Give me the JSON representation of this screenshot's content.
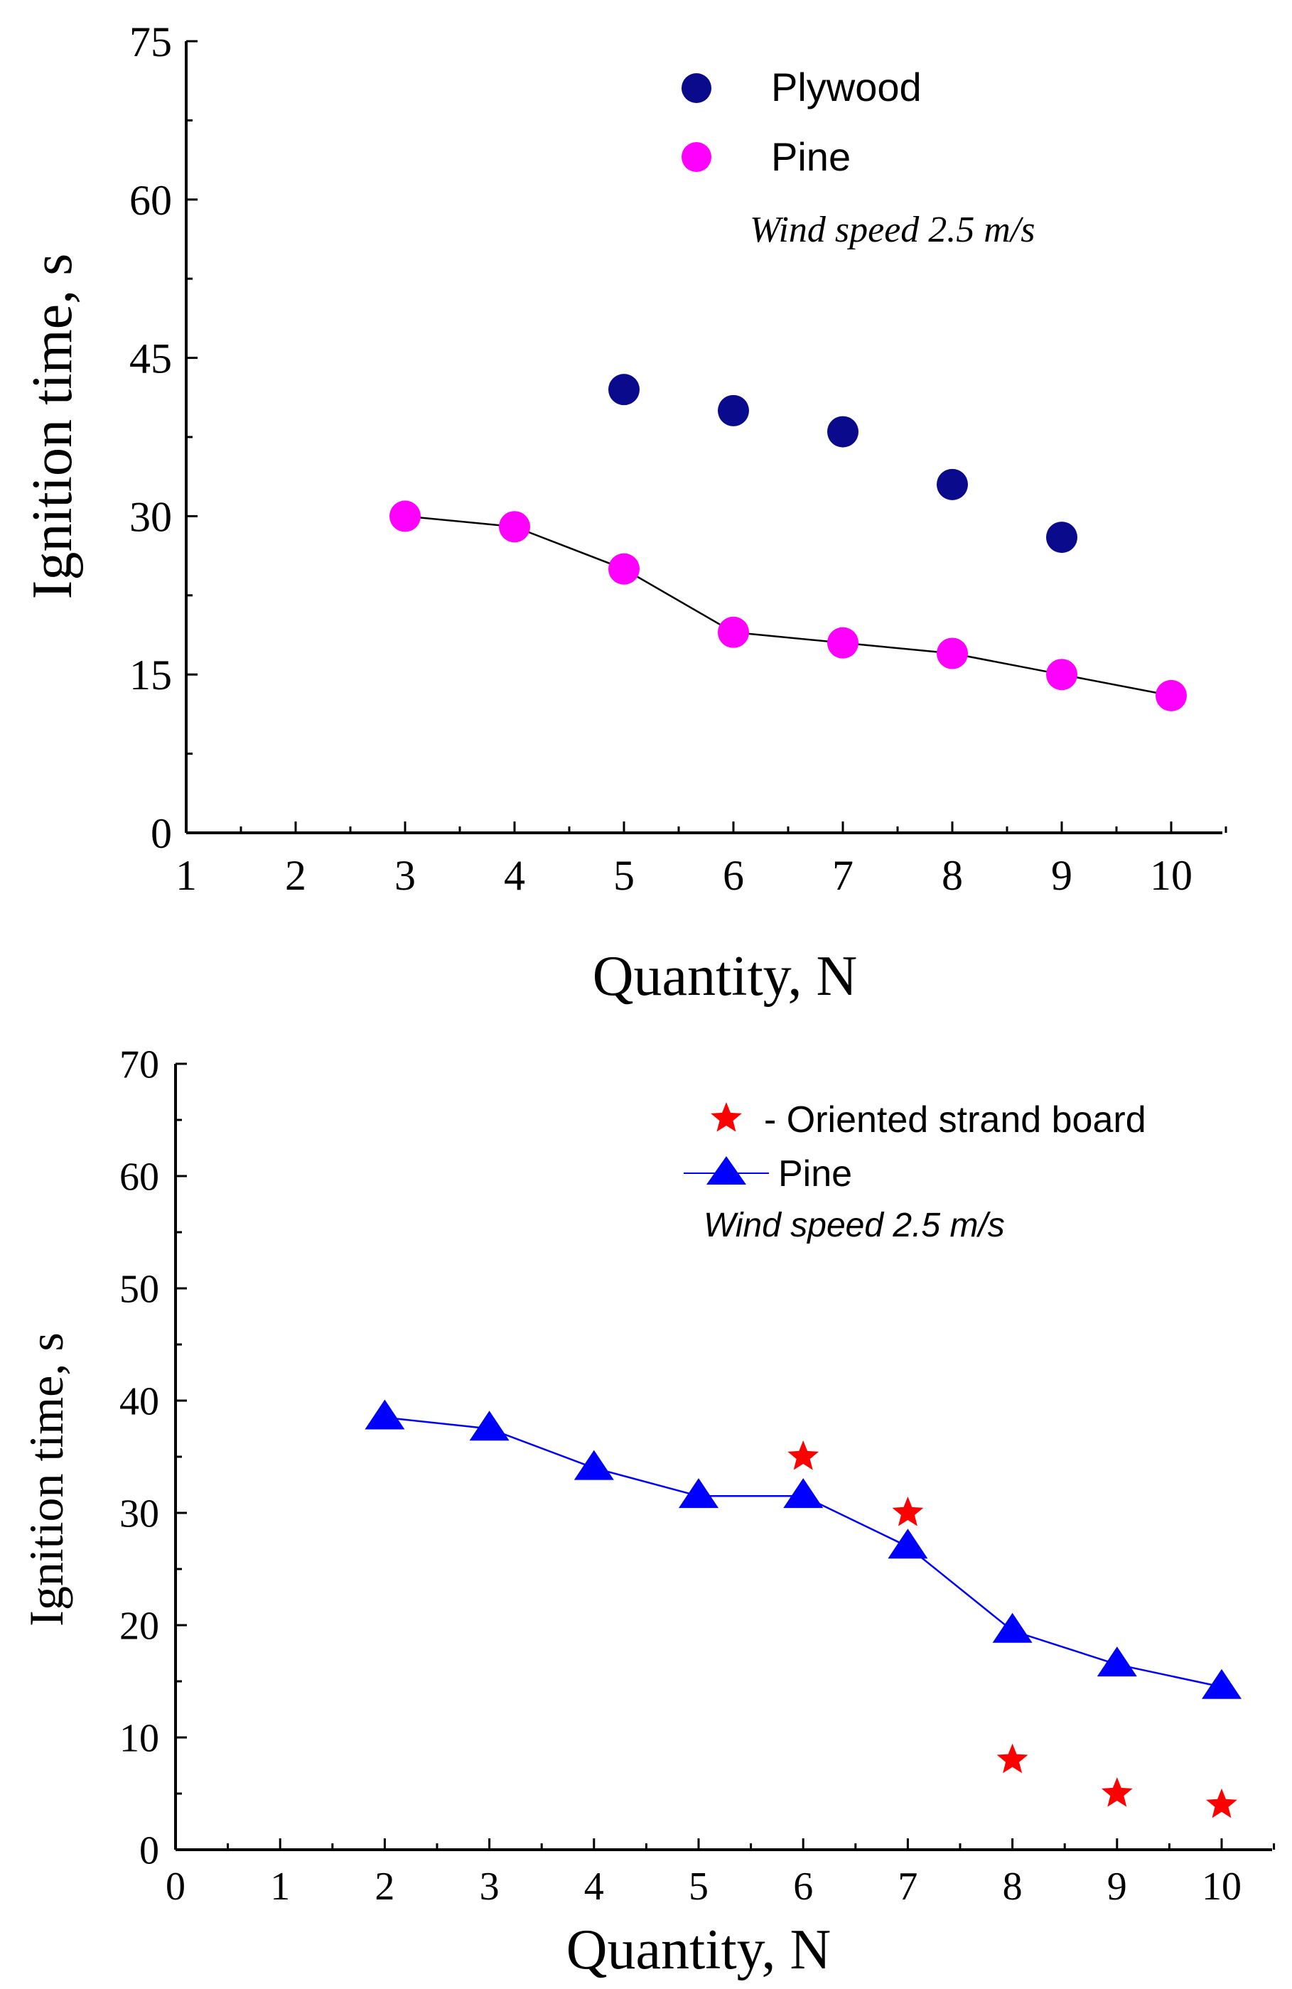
{
  "chart_data": [
    {
      "type": "scatter",
      "xlabel": "Quantity, N",
      "ylabel": "Ignition time, s",
      "xlim": [
        1,
        10.5
      ],
      "ylim": [
        0,
        75
      ],
      "x_ticks": [
        1,
        2,
        3,
        4,
        5,
        6,
        7,
        8,
        9,
        10
      ],
      "y_ticks": [
        0,
        15,
        30,
        45,
        60,
        75
      ],
      "annotation": "Wind speed 2.5 m/s",
      "series": [
        {
          "name": "Plywood",
          "marker": "circle",
          "color": "#0a0a8c",
          "line": false,
          "x": [
            5,
            6,
            7,
            8,
            9
          ],
          "values": [
            42,
            40,
            38,
            33,
            28
          ]
        },
        {
          "name": "Pine",
          "marker": "circle",
          "color": "#ff00ff",
          "line": true,
          "line_color": "#000000",
          "x": [
            3,
            4,
            5,
            6,
            7,
            8,
            9,
            10
          ],
          "values": [
            30,
            29,
            25,
            19,
            18,
            17,
            15,
            13
          ]
        }
      ]
    },
    {
      "type": "scatter",
      "xlabel": "Quantity, N",
      "ylabel": "Ignition time, s",
      "xlim": [
        0,
        10.5
      ],
      "ylim": [
        0,
        70
      ],
      "x_ticks": [
        0,
        1,
        2,
        3,
        4,
        5,
        6,
        7,
        8,
        9,
        10
      ],
      "y_ticks": [
        0,
        10,
        20,
        30,
        40,
        50,
        60,
        70
      ],
      "annotation": "Wind speed 2.5 m/s",
      "series": [
        {
          "name": "- Oriented strand board",
          "marker": "star",
          "color": "#ff0000",
          "line": false,
          "x": [
            6,
            7,
            8,
            9,
            10
          ],
          "values": [
            35,
            30,
            8,
            5,
            4
          ]
        },
        {
          "name": "Pine",
          "marker": "triangle",
          "color": "#0000ff",
          "line": true,
          "line_color": "#0000ff",
          "x": [
            2,
            3,
            4,
            5,
            6,
            7,
            8,
            9,
            10
          ],
          "values": [
            38.5,
            37.5,
            34,
            31.5,
            31.5,
            27,
            19.5,
            16.5,
            14.5
          ]
        }
      ]
    }
  ]
}
